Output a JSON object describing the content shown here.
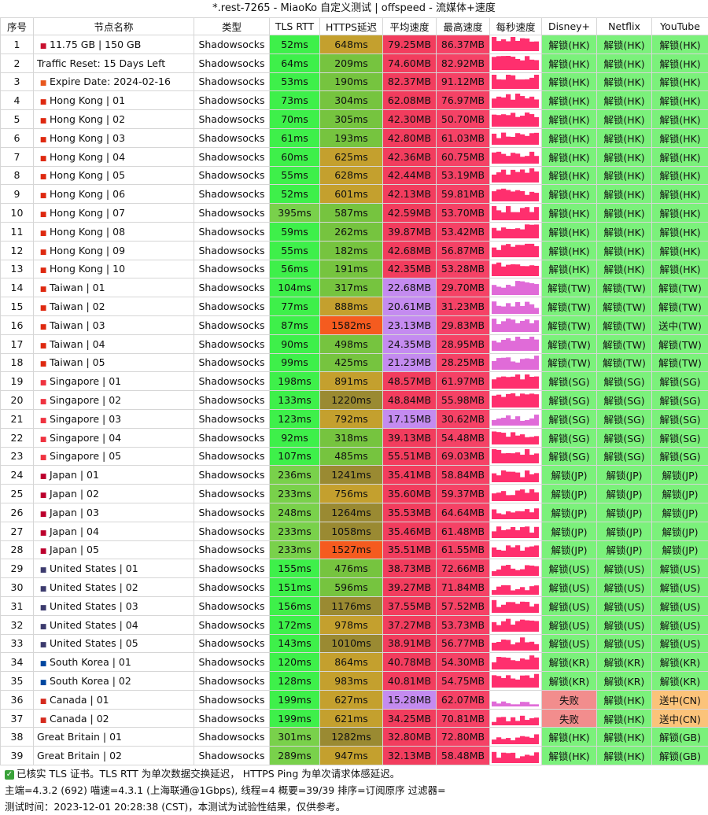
{
  "title": "*.rest-7265 - MiaoKo 自定义测试 | offspeed - 流媒体+速度",
  "headers": [
    "序号",
    "节点名称",
    "类型",
    "TLS RTT",
    "HTTPS延迟",
    "平均速度",
    "最高速度",
    "每秒速度",
    "Disney+",
    "Netflix",
    "YouTube"
  ],
  "rows": [
    {
      "no": "1",
      "flag": "GB",
      "name": "11.75 GB | 150 GB",
      "type": "Shadowsocks",
      "tls": "52ms",
      "https": "648ms",
      "avg": "79.25MB",
      "max": "86.37MB",
      "d": "解锁(HK)",
      "n": "解锁(HK)",
      "y": "解锁(HK)"
    },
    {
      "no": "2",
      "flag": "",
      "name": "Traffic Reset: 15 Days Left",
      "type": "Shadowsocks",
      "tls": "64ms",
      "https": "209ms",
      "avg": "74.60MB",
      "max": "82.92MB",
      "d": "解锁(HK)",
      "n": "解锁(HK)",
      "y": "解锁(HK)"
    },
    {
      "no": "3",
      "flag": "RB",
      "name": "Expire Date: 2024-02-16",
      "type": "Shadowsocks",
      "tls": "53ms",
      "https": "190ms",
      "avg": "82.37MB",
      "max": "91.12MB",
      "d": "解锁(HK)",
      "n": "解锁(HK)",
      "y": "解锁(HK)"
    },
    {
      "no": "4",
      "flag": "HK",
      "name": "Hong Kong | 01",
      "type": "Shadowsocks",
      "tls": "73ms",
      "https": "304ms",
      "avg": "62.08MB",
      "max": "76.97MB",
      "d": "解锁(HK)",
      "n": "解锁(HK)",
      "y": "解锁(HK)"
    },
    {
      "no": "5",
      "flag": "HK",
      "name": "Hong Kong | 02",
      "type": "Shadowsocks",
      "tls": "70ms",
      "https": "305ms",
      "avg": "42.30MB",
      "max": "50.70MB",
      "d": "解锁(HK)",
      "n": "解锁(HK)",
      "y": "解锁(HK)"
    },
    {
      "no": "6",
      "flag": "HK",
      "name": "Hong Kong | 03",
      "type": "Shadowsocks",
      "tls": "61ms",
      "https": "193ms",
      "avg": "42.80MB",
      "max": "61.03MB",
      "d": "解锁(HK)",
      "n": "解锁(HK)",
      "y": "解锁(HK)"
    },
    {
      "no": "7",
      "flag": "HK",
      "name": "Hong Kong | 04",
      "type": "Shadowsocks",
      "tls": "60ms",
      "https": "625ms",
      "avg": "42.36MB",
      "max": "60.75MB",
      "d": "解锁(HK)",
      "n": "解锁(HK)",
      "y": "解锁(HK)"
    },
    {
      "no": "8",
      "flag": "HK",
      "name": "Hong Kong | 05",
      "type": "Shadowsocks",
      "tls": "55ms",
      "https": "628ms",
      "avg": "42.44MB",
      "max": "53.19MB",
      "d": "解锁(HK)",
      "n": "解锁(HK)",
      "y": "解锁(HK)"
    },
    {
      "no": "9",
      "flag": "HK",
      "name": "Hong Kong | 06",
      "type": "Shadowsocks",
      "tls": "52ms",
      "https": "601ms",
      "avg": "42.13MB",
      "max": "59.81MB",
      "d": "解锁(HK)",
      "n": "解锁(HK)",
      "y": "解锁(HK)"
    },
    {
      "no": "10",
      "flag": "HK",
      "name": "Hong Kong | 07",
      "type": "Shadowsocks",
      "tls": "395ms",
      "https": "587ms",
      "avg": "42.59MB",
      "max": "53.70MB",
      "d": "解锁(HK)",
      "n": "解锁(HK)",
      "y": "解锁(HK)"
    },
    {
      "no": "11",
      "flag": "HK",
      "name": "Hong Kong | 08",
      "type": "Shadowsocks",
      "tls": "59ms",
      "https": "262ms",
      "avg": "39.87MB",
      "max": "53.42MB",
      "d": "解锁(HK)",
      "n": "解锁(HK)",
      "y": "解锁(HK)"
    },
    {
      "no": "12",
      "flag": "HK",
      "name": "Hong Kong | 09",
      "type": "Shadowsocks",
      "tls": "55ms",
      "https": "182ms",
      "avg": "42.68MB",
      "max": "56.87MB",
      "d": "解锁(HK)",
      "n": "解锁(HK)",
      "y": "解锁(HK)"
    },
    {
      "no": "13",
      "flag": "HK",
      "name": "Hong Kong | 10",
      "type": "Shadowsocks",
      "tls": "56ms",
      "https": "191ms",
      "avg": "42.35MB",
      "max": "53.28MB",
      "d": "解锁(HK)",
      "n": "解锁(HK)",
      "y": "解锁(HK)"
    },
    {
      "no": "14",
      "flag": "TW",
      "name": "Taiwan | 01",
      "type": "Shadowsocks",
      "tls": "104ms",
      "https": "317ms",
      "avg": "22.68MB",
      "max": "29.70MB",
      "d": "解锁(TW)",
      "n": "解锁(TW)",
      "y": "解锁(TW)"
    },
    {
      "no": "15",
      "flag": "TW",
      "name": "Taiwan | 02",
      "type": "Shadowsocks",
      "tls": "77ms",
      "https": "888ms",
      "avg": "20.61MB",
      "max": "31.23MB",
      "d": "解锁(TW)",
      "n": "解锁(TW)",
      "y": "解锁(TW)"
    },
    {
      "no": "16",
      "flag": "TW",
      "name": "Taiwan | 03",
      "type": "Shadowsocks",
      "tls": "87ms",
      "https": "1582ms",
      "avg": "23.13MB",
      "max": "29.83MB",
      "d": "解锁(TW)",
      "n": "解锁(TW)",
      "y": "送中(TW)"
    },
    {
      "no": "17",
      "flag": "TW",
      "name": "Taiwan | 04",
      "type": "Shadowsocks",
      "tls": "90ms",
      "https": "498ms",
      "avg": "24.35MB",
      "max": "28.95MB",
      "d": "解锁(TW)",
      "n": "解锁(TW)",
      "y": "解锁(TW)"
    },
    {
      "no": "18",
      "flag": "TW",
      "name": "Taiwan | 05",
      "type": "Shadowsocks",
      "tls": "99ms",
      "https": "425ms",
      "avg": "21.23MB",
      "max": "28.25MB",
      "d": "解锁(TW)",
      "n": "解锁(TW)",
      "y": "解锁(TW)"
    },
    {
      "no": "19",
      "flag": "SG",
      "name": "Singapore | 01",
      "type": "Shadowsocks",
      "tls": "198ms",
      "https": "891ms",
      "avg": "48.57MB",
      "max": "61.97MB",
      "d": "解锁(SG)",
      "n": "解锁(SG)",
      "y": "解锁(SG)"
    },
    {
      "no": "20",
      "flag": "SG",
      "name": "Singapore | 02",
      "type": "Shadowsocks",
      "tls": "133ms",
      "https": "1220ms",
      "avg": "48.84MB",
      "max": "55.98MB",
      "d": "解锁(SG)",
      "n": "解锁(SG)",
      "y": "解锁(SG)"
    },
    {
      "no": "21",
      "flag": "SG",
      "name": "Singapore | 03",
      "type": "Shadowsocks",
      "tls": "123ms",
      "https": "792ms",
      "avg": "17.15MB",
      "max": "30.62MB",
      "d": "解锁(SG)",
      "n": "解锁(SG)",
      "y": "解锁(SG)"
    },
    {
      "no": "22",
      "flag": "SG",
      "name": "Singapore | 04",
      "type": "Shadowsocks",
      "tls": "92ms",
      "https": "318ms",
      "avg": "39.13MB",
      "max": "54.48MB",
      "d": "解锁(SG)",
      "n": "解锁(SG)",
      "y": "解锁(SG)"
    },
    {
      "no": "23",
      "flag": "SG",
      "name": "Singapore | 05",
      "type": "Shadowsocks",
      "tls": "107ms",
      "https": "485ms",
      "avg": "55.51MB",
      "max": "69.03MB",
      "d": "解锁(SG)",
      "n": "解锁(SG)",
      "y": "解锁(SG)"
    },
    {
      "no": "24",
      "flag": "JP",
      "name": "Japan | 01",
      "type": "Shadowsocks",
      "tls": "236ms",
      "https": "1241ms",
      "avg": "35.41MB",
      "max": "58.84MB",
      "d": "解锁(JP)",
      "n": "解锁(JP)",
      "y": "解锁(JP)"
    },
    {
      "no": "25",
      "flag": "JP",
      "name": "Japan | 02",
      "type": "Shadowsocks",
      "tls": "233ms",
      "https": "756ms",
      "avg": "35.60MB",
      "max": "59.37MB",
      "d": "解锁(JP)",
      "n": "解锁(JP)",
      "y": "解锁(JP)"
    },
    {
      "no": "26",
      "flag": "JP",
      "name": "Japan | 03",
      "type": "Shadowsocks",
      "tls": "248ms",
      "https": "1264ms",
      "avg": "35.53MB",
      "max": "64.64MB",
      "d": "解锁(JP)",
      "n": "解锁(JP)",
      "y": "解锁(JP)"
    },
    {
      "no": "27",
      "flag": "JP",
      "name": "Japan | 04",
      "type": "Shadowsocks",
      "tls": "233ms",
      "https": "1058ms",
      "avg": "35.46MB",
      "max": "61.48MB",
      "d": "解锁(JP)",
      "n": "解锁(JP)",
      "y": "解锁(JP)"
    },
    {
      "no": "28",
      "flag": "JP",
      "name": "Japan | 05",
      "type": "Shadowsocks",
      "tls": "233ms",
      "https": "1527ms",
      "avg": "35.51MB",
      "max": "61.55MB",
      "d": "解锁(JP)",
      "n": "解锁(JP)",
      "y": "解锁(JP)"
    },
    {
      "no": "29",
      "flag": "US",
      "name": "United States | 01",
      "type": "Shadowsocks",
      "tls": "155ms",
      "https": "476ms",
      "avg": "38.73MB",
      "max": "72.66MB",
      "d": "解锁(US)",
      "n": "解锁(US)",
      "y": "解锁(US)"
    },
    {
      "no": "30",
      "flag": "US",
      "name": "United States | 02",
      "type": "Shadowsocks",
      "tls": "151ms",
      "https": "596ms",
      "avg": "39.27MB",
      "max": "71.84MB",
      "d": "解锁(US)",
      "n": "解锁(US)",
      "y": "解锁(US)"
    },
    {
      "no": "31",
      "flag": "US",
      "name": "United States | 03",
      "type": "Shadowsocks",
      "tls": "156ms",
      "https": "1176ms",
      "avg": "37.55MB",
      "max": "57.52MB",
      "d": "解锁(US)",
      "n": "解锁(US)",
      "y": "解锁(US)"
    },
    {
      "no": "32",
      "flag": "US",
      "name": "United States | 04",
      "type": "Shadowsocks",
      "tls": "172ms",
      "https": "978ms",
      "avg": "37.27MB",
      "max": "53.73MB",
      "d": "解锁(US)",
      "n": "解锁(US)",
      "y": "解锁(US)"
    },
    {
      "no": "33",
      "flag": "US",
      "name": "United States | 05",
      "type": "Shadowsocks",
      "tls": "143ms",
      "https": "1010ms",
      "avg": "38.91MB",
      "max": "56.77MB",
      "d": "解锁(US)",
      "n": "解锁(US)",
      "y": "解锁(US)"
    },
    {
      "no": "34",
      "flag": "KR",
      "name": "South Korea | 01",
      "type": "Shadowsocks",
      "tls": "120ms",
      "https": "864ms",
      "avg": "40.78MB",
      "max": "54.30MB",
      "d": "解锁(KR)",
      "n": "解锁(KR)",
      "y": "解锁(KR)"
    },
    {
      "no": "35",
      "flag": "KR",
      "name": "South Korea | 02",
      "type": "Shadowsocks",
      "tls": "128ms",
      "https": "983ms",
      "avg": "40.81MB",
      "max": "54.75MB",
      "d": "解锁(KR)",
      "n": "解锁(KR)",
      "y": "解锁(KR)"
    },
    {
      "no": "36",
      "flag": "CA",
      "name": "Canada | 01",
      "type": "Shadowsocks",
      "tls": "199ms",
      "https": "627ms",
      "avg": "15.28MB",
      "max": "62.07MB",
      "d": "失败",
      "n": "解锁(HK)",
      "y": "送中(CN)"
    },
    {
      "no": "37",
      "flag": "CA",
      "name": "Canada | 02",
      "type": "Shadowsocks",
      "tls": "199ms",
      "https": "621ms",
      "avg": "34.25MB",
      "max": "70.81MB",
      "d": "失败",
      "n": "解锁(HK)",
      "y": "送中(CN)"
    },
    {
      "no": "38",
      "flag": "",
      "name": "Great Britain | 01",
      "type": "Shadowsocks",
      "tls": "301ms",
      "https": "1282ms",
      "avg": "32.80MB",
      "max": "72.80MB",
      "d": "解锁(HK)",
      "n": "解锁(HK)",
      "y": "解锁(GB)"
    },
    {
      "no": "39",
      "flag": "",
      "name": "Great Britain | 02",
      "type": "Shadowsocks",
      "tls": "289ms",
      "https": "947ms",
      "avg": "32.13MB",
      "max": "58.48MB",
      "d": "解锁(HK)",
      "n": "解锁(HK)",
      "y": "解锁(GB)"
    }
  ],
  "footer": {
    "line1": "已核实 TLS 证书。TLS RTT 为单次数据交换延迟， HTTPS Ping 为单次请求体感延迟。",
    "line2": "主端=4.3.2 (692) 喵速=4.3.1 (上海联通@1Gbps), 线程=4 概要=39/39 排序=订阅原序 过滤器=",
    "line3": "测试时间：2023-12-01 20:28:38 (CST)，本测试为试验性结果，仅供参考。"
  },
  "colors": {
    "tls_good": "#3ef04a",
    "speed_red": "#f23d5e",
    "speed_purple": "#c48bf0",
    "unlock_green": "#7bf17b",
    "fail_red": "#f28d8d",
    "cn_orange": "#fbc37a",
    "sparkline": "#ff2f6e"
  }
}
